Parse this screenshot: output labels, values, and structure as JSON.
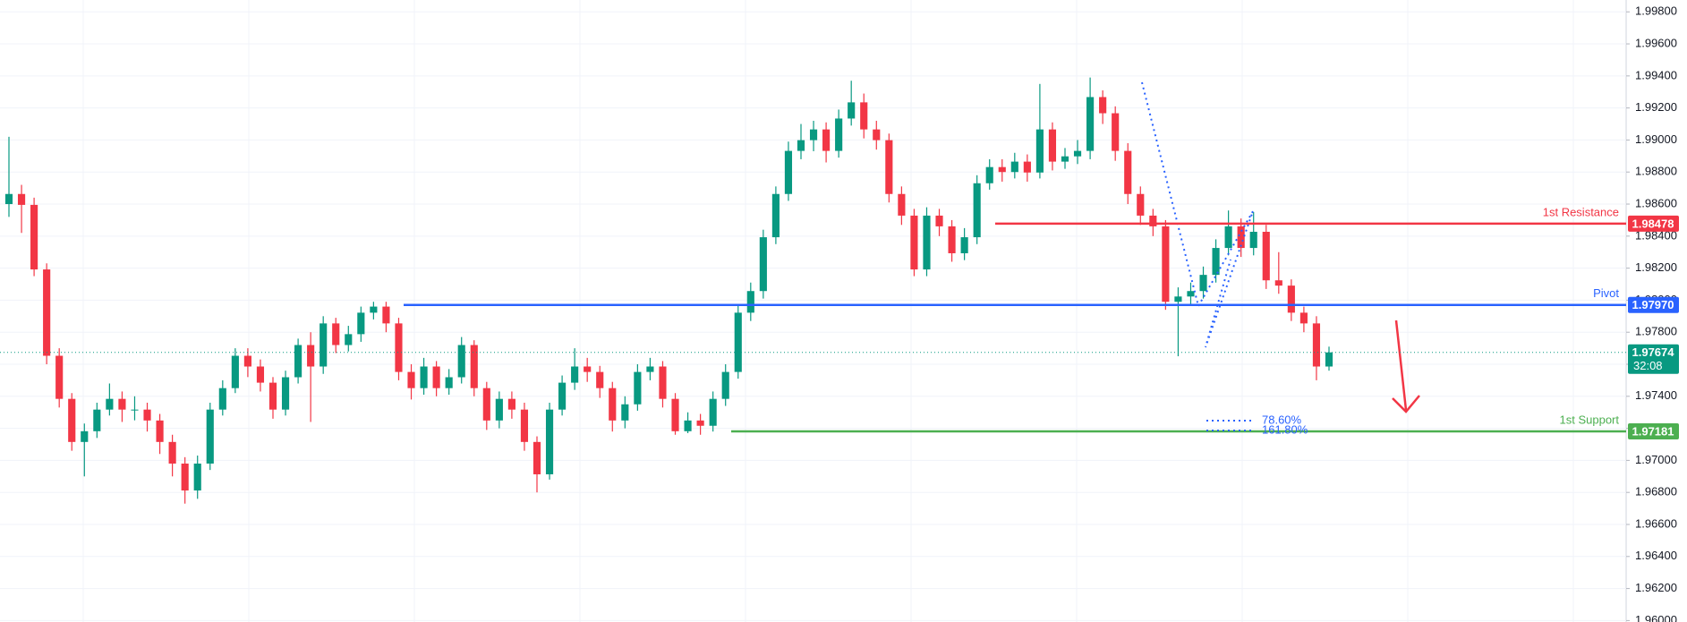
{
  "chart_data": {
    "type": "candlestick",
    "up_color": "#089981",
    "down_color": "#f23645",
    "open": [
      1.986,
      1.98663,
      1.98595,
      1.98192,
      1.97653,
      1.97384,
      1.97115,
      1.97182,
      1.97317,
      1.97384,
      1.97317,
      1.97317,
      1.97249,
      1.97115,
      1.9698,
      1.96812,
      1.9698,
      1.97317,
      1.97451,
      1.97653,
      1.97586,
      1.97485,
      1.97317,
      1.97519,
      1.9772,
      1.97586,
      1.97855,
      1.9772,
      1.97788,
      1.97922,
      1.9796,
      1.97855,
      1.97552,
      1.97451,
      1.97586,
      1.97451,
      1.97519,
      1.9772,
      1.97451,
      1.97249,
      1.97384,
      1.97317,
      1.97115,
      1.96913,
      1.97317,
      1.97485,
      1.97586,
      1.97552,
      1.97451,
      1.97249,
      1.9735,
      1.97552,
      1.97586,
      1.97384,
      1.97182,
      1.97249,
      1.97216,
      1.97384,
      1.97552,
      1.97922,
      1.98057,
      1.98393,
      1.98663,
      1.98932,
      1.98999,
      1.99066,
      1.98932,
      1.99134,
      1.99235,
      1.99066,
      1.98999,
      1.98663,
      1.98528,
      1.98192,
      1.98528,
      1.98461,
      1.98293,
      1.98393,
      1.9873,
      1.98831,
      1.988,
      1.98865,
      1.98797,
      1.99066,
      1.98865,
      1.98898,
      1.98932,
      1.99268,
      1.99167,
      1.98932,
      1.98663,
      1.98528,
      1.98461,
      1.9799,
      1.98023,
      1.98057,
      1.98158,
      1.98326,
      1.98461,
      1.98326,
      1.98427,
      1.98124,
      1.98091,
      1.97922,
      1.97855,
      1.97586
    ],
    "high": [
      1.9902,
      1.9872,
      1.9864,
      1.9823,
      1.977,
      1.9742,
      1.9723,
      1.9736,
      1.9748,
      1.9743,
      1.974,
      1.9736,
      1.9729,
      1.9716,
      1.9702,
      1.9703,
      1.9736,
      1.975,
      1.977,
      1.977,
      1.9763,
      1.9752,
      1.9756,
      1.9776,
      1.978,
      1.979,
      1.9789,
      1.9784,
      1.9796,
      1.9799,
      1.9799,
      1.9789,
      1.976,
      1.9764,
      1.9762,
      1.9757,
      1.9777,
      1.9775,
      1.9749,
      1.9743,
      1.9743,
      1.9736,
      1.9715,
      1.9736,
      1.9753,
      1.977,
      1.9764,
      1.9759,
      1.9749,
      1.974,
      1.976,
      1.9764,
      1.9762,
      1.9742,
      1.973,
      1.9729,
      1.9743,
      1.976,
      1.9797,
      1.9811,
      1.9844,
      1.9871,
      1.9899,
      1.991,
      1.9912,
      1.9911,
      1.9919,
      1.9937,
      1.9929,
      1.9912,
      1.9904,
      1.9871,
      1.9857,
      1.9858,
      1.9857,
      1.985,
      1.9845,
      1.9878,
      1.9888,
      1.9888,
      1.9892,
      1.9891,
      1.9935,
      1.9911,
      1.9895,
      1.99,
      1.9939,
      1.9931,
      1.9921,
      1.9898,
      1.9871,
      1.9857,
      1.985,
      1.9808,
      1.9811,
      1.9821,
      1.9838,
      1.9856,
      1.9851,
      1.9855,
      1.9847,
      1.983,
      1.9813,
      1.9796,
      1.979,
      1.9771
    ],
    "low": [
      1.9852,
      1.9842,
      1.9815,
      1.976,
      1.9733,
      1.9706,
      1.969,
      1.9714,
      1.9728,
      1.9724,
      1.9725,
      1.9718,
      1.9704,
      1.969,
      1.9673,
      1.9676,
      1.9694,
      1.9728,
      1.9742,
      1.9752,
      1.9743,
      1.9726,
      1.9728,
      1.9748,
      1.9724,
      1.9754,
      1.9767,
      1.9768,
      1.9774,
      1.9788,
      1.978,
      1.975,
      1.9738,
      1.9741,
      1.974,
      1.9741,
      1.9748,
      1.974,
      1.9719,
      1.972,
      1.9726,
      1.9706,
      1.968,
      1.9688,
      1.9728,
      1.9744,
      1.9749,
      1.9739,
      1.9718,
      1.972,
      1.9731,
      1.975,
      1.9733,
      1.9716,
      1.9717,
      1.9716,
      1.9718,
      1.9734,
      1.9751,
      1.9787,
      1.9801,
      1.9835,
      1.9862,
      1.9888,
      1.9893,
      1.9886,
      1.9889,
      1.9909,
      1.9901,
      1.9894,
      1.9861,
      1.9847,
      1.9815,
      1.9815,
      1.984,
      1.9824,
      1.9825,
      1.9835,
      1.9869,
      1.9874,
      1.9876,
      1.9874,
      1.9876,
      1.9881,
      1.9882,
      1.9885,
      1.9888,
      1.991,
      1.9887,
      1.986,
      1.9847,
      1.984,
      1.9794,
      1.9765,
      1.9797,
      1.9801,
      1.9811,
      1.9828,
      1.9827,
      1.9828,
      1.9807,
      1.9804,
      1.9787,
      1.978,
      1.975,
      1.9756
    ],
    "close": [
      1.98663,
      1.98595,
      1.98192,
      1.97653,
      1.97384,
      1.97115,
      1.97182,
      1.97317,
      1.97384,
      1.97317,
      1.97317,
      1.97249,
      1.97115,
      1.9698,
      1.96812,
      1.9698,
      1.97317,
      1.97451,
      1.97653,
      1.97586,
      1.97485,
      1.97317,
      1.97519,
      1.9772,
      1.97586,
      1.97855,
      1.9772,
      1.97788,
      1.97922,
      1.9796,
      1.97855,
      1.97552,
      1.97451,
      1.97586,
      1.97451,
      1.97519,
      1.9772,
      1.97451,
      1.97249,
      1.97384,
      1.97317,
      1.97115,
      1.96913,
      1.97317,
      1.97485,
      1.97586,
      1.97552,
      1.97451,
      1.97249,
      1.9735,
      1.97552,
      1.97586,
      1.97384,
      1.97182,
      1.97249,
      1.97216,
      1.97384,
      1.97552,
      1.97922,
      1.98057,
      1.98393,
      1.98663,
      1.98932,
      1.98999,
      1.99066,
      1.98932,
      1.99134,
      1.99235,
      1.99066,
      1.98999,
      1.98663,
      1.98528,
      1.98192,
      1.98528,
      1.98461,
      1.98293,
      1.98393,
      1.9873,
      1.98831,
      1.988,
      1.98865,
      1.98797,
      1.99066,
      1.98865,
      1.98898,
      1.98932,
      1.99268,
      1.99167,
      1.98932,
      1.98663,
      1.98528,
      1.98461,
      1.9799,
      1.98023,
      1.98057,
      1.98158,
      1.98326,
      1.98461,
      1.98326,
      1.98427,
      1.98124,
      1.98091,
      1.97922,
      1.97855,
      1.97586,
      1.97674
    ],
    "ylim": [
      1.95991,
      1.99874
    ],
    "yticks": [
      {
        "value": 1.96,
        "label": "1.96000"
      },
      {
        "value": 1.962,
        "label": "1.96200"
      },
      {
        "value": 1.964,
        "label": "1.96400"
      },
      {
        "value": 1.966,
        "label": "1.96600"
      },
      {
        "value": 1.968,
        "label": "1.96800"
      },
      {
        "value": 1.97,
        "label": "1.97000"
      },
      {
        "value": 1.972,
        "label": "1.97200"
      },
      {
        "value": 1.974,
        "label": "1.97400"
      },
      {
        "value": 1.976,
        "label": "1.97600"
      },
      {
        "value": 1.978,
        "label": "1.97800"
      },
      {
        "value": 1.98,
        "label": "1.98000"
      },
      {
        "value": 1.982,
        "label": "1.98200"
      },
      {
        "value": 1.984,
        "label": "1.98400"
      },
      {
        "value": 1.986,
        "label": "1.98600"
      },
      {
        "value": 1.988,
        "label": "1.98800"
      },
      {
        "value": 1.99,
        "label": "1.99000"
      },
      {
        "value": 1.992,
        "label": "1.99200"
      },
      {
        "value": 1.994,
        "label": "1.99400"
      },
      {
        "value": 1.996,
        "label": "1.99600"
      },
      {
        "value": 1.998,
        "label": "1.99800"
      }
    ],
    "grid": true,
    "levels": [
      {
        "name": "1st Resistance",
        "value": 1.98478,
        "color": "#f23645"
      },
      {
        "name": "Pivot",
        "value": 1.9797,
        "value_label": "1.97970",
        "color": "#2962ff"
      },
      {
        "name": "1st Support",
        "value": 1.97181,
        "color": "#4caf50"
      }
    ],
    "last_price": {
      "value": 1.97674,
      "countdown": "32:08",
      "color": "#089981"
    },
    "fib_labels": [
      "78.60%",
      "161.80%"
    ]
  }
}
